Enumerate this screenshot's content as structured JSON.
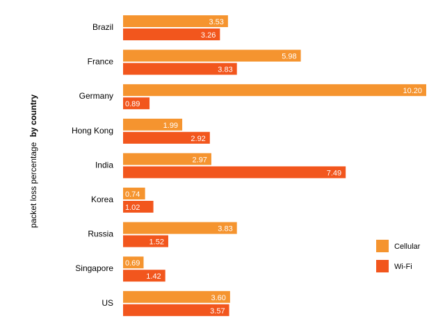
{
  "chart_data": {
    "type": "bar",
    "orientation": "horizontal",
    "ylabel_normal": "packet loss percentage",
    "ylabel_bold": "by country",
    "categories": [
      "Brazil",
      "France",
      "Germany",
      "Hong Kong",
      "India",
      "Korea",
      "Russia",
      "Singapore",
      "US"
    ],
    "series": [
      {
        "name": "Cellular",
        "color": "#F5942F",
        "values": [
          3.53,
          5.98,
          10.2,
          1.99,
          2.97,
          0.74,
          3.83,
          0.69,
          3.6
        ],
        "labels": [
          "3.53",
          "5.98",
          "10.20",
          "1.99",
          "2.97",
          "0.74",
          "3.83",
          "0.69",
          "3.60"
        ]
      },
      {
        "name": "Wi-Fi",
        "color": "#F2561D",
        "values": [
          3.26,
          3.83,
          0.89,
          2.92,
          7.49,
          1.02,
          1.52,
          1.42,
          3.57
        ],
        "labels": [
          "3.26",
          "3.83",
          "0.89",
          "2.92",
          "7.49",
          "1.02",
          "1.52",
          "1.42",
          "3.57"
        ]
      }
    ],
    "xlim": [
      0,
      10.2
    ],
    "grid": false,
    "legend_position": "right"
  }
}
